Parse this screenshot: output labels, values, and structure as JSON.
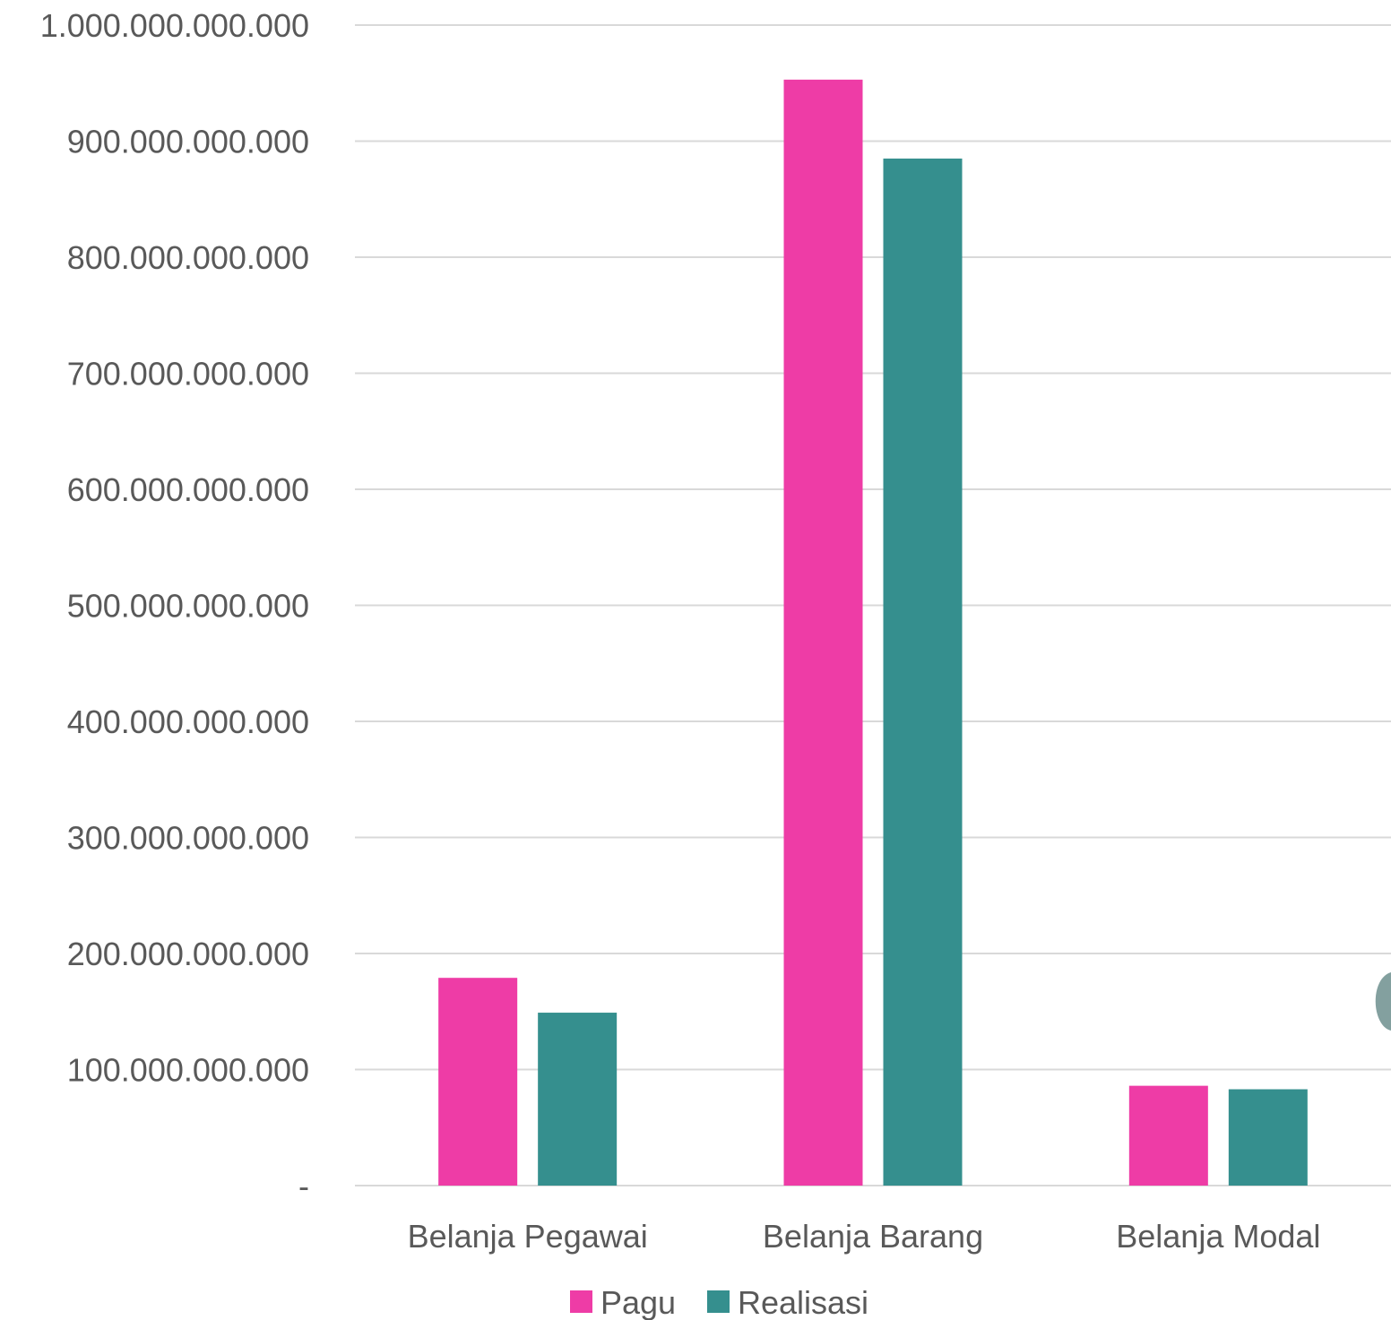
{
  "chart_data": {
    "type": "bar",
    "title": "",
    "xlabel": "",
    "ylabel": "",
    "categories": [
      "Belanja Pegawai",
      "Belanja Barang",
      "Belanja Modal"
    ],
    "series": [
      {
        "name": "Pagu",
        "color": "#ee3ca6",
        "values": [
          179000000000,
          953000000000,
          86000000000
        ]
      },
      {
        "name": "Realisasi",
        "color": "#358f8e",
        "values": [
          149000000000,
          885000000000,
          83000000000
        ]
      }
    ],
    "ylim": [
      0,
      1000000000000
    ],
    "yticks": [
      {
        "value": 0,
        "label": "-"
      },
      {
        "value": 100000000000,
        "label": "100.000.000.000"
      },
      {
        "value": 200000000000,
        "label": "200.000.000.000"
      },
      {
        "value": 300000000000,
        "label": "300.000.000.000"
      },
      {
        "value": 400000000000,
        "label": "400.000.000.000"
      },
      {
        "value": 500000000000,
        "label": "500.000.000.000"
      },
      {
        "value": 600000000000,
        "label": "600.000.000.000"
      },
      {
        "value": 700000000000,
        "label": "700.000.000.000"
      },
      {
        "value": 800000000000,
        "label": "800.000.000.000"
      },
      {
        "value": 900000000000,
        "label": "900.000.000.000"
      },
      {
        "value": 1000000000000,
        "label": "1.000.000.000.000"
      }
    ],
    "grid": true,
    "legend": "bottom"
  }
}
